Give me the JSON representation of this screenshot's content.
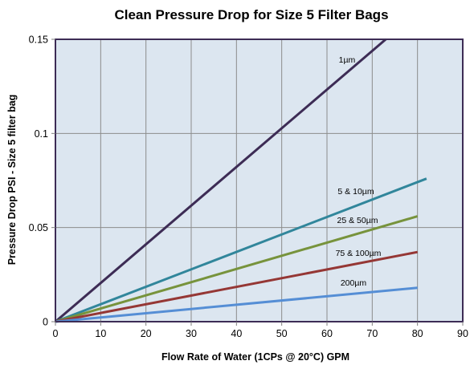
{
  "chart_data": {
    "type": "line",
    "title": "Clean Pressure Drop for Size 5 Filter Bags",
    "xlabel": "Flow Rate of Water (1CPs @ 20°C) GPM",
    "ylabel": "Pressure Drop PSI - Size 5 filter bag",
    "xlim": [
      0,
      90
    ],
    "ylim": [
      0,
      0.15
    ],
    "x_ticks": [
      "0",
      "10",
      "20",
      "30",
      "40",
      "50",
      "60",
      "70",
      "80",
      "90"
    ],
    "y_ticks": [
      "0",
      "0.05",
      "0.1",
      "0.15"
    ],
    "grid": true,
    "legend": "none (inline labels)",
    "background_color": "#dce6f0",
    "series": [
      {
        "name": "1µm",
        "color": "#3d2c55",
        "x": [
          0,
          73
        ],
        "y": [
          0,
          0.15
        ]
      },
      {
        "name": "5 & 10µm",
        "color": "#31869b",
        "x": [
          0,
          82
        ],
        "y": [
          0,
          0.076
        ]
      },
      {
        "name": "25 & 50µm",
        "color": "#77933c",
        "x": [
          0,
          80
        ],
        "y": [
          0,
          0.056
        ]
      },
      {
        "name": "75 & 100µm",
        "color": "#953735",
        "x": [
          0,
          80
        ],
        "y": [
          0,
          0.037
        ]
      },
      {
        "name": "200µm",
        "color": "#558ed5",
        "x": [
          0,
          80
        ],
        "y": [
          0,
          0.018
        ]
      }
    ]
  }
}
